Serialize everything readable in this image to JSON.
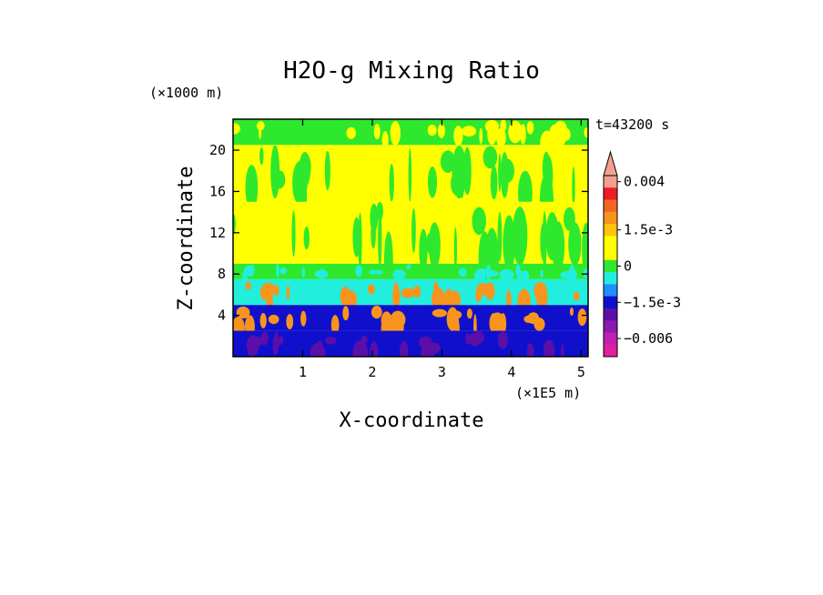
{
  "chart_data": {
    "type": "heatmap",
    "title": "H2O-g Mixing Ratio",
    "xlabel": "X-coordinate",
    "ylabel": "Z-coordinate",
    "x_unit": "(×1E5 m)",
    "y_unit": "(×1000 m)",
    "time_label": "t=43200 s",
    "xlim": [
      0,
      5.1
    ],
    "ylim": [
      0,
      23
    ],
    "x_ticks": [
      1,
      2,
      3,
      4,
      5
    ],
    "x_tick_labels": [
      "1",
      "2",
      "3",
      "4",
      "5"
    ],
    "y_ticks": [
      4,
      8,
      12,
      16,
      20
    ],
    "y_tick_labels": [
      "4",
      "8",
      "12",
      "16",
      "20"
    ],
    "colorbar": {
      "labels": [
        {
          "text": "0.004",
          "value": 0.004
        },
        {
          "text": "1.5e-3",
          "value": 0.0015
        },
        {
          "text": "0",
          "value": 0
        },
        {
          "text": "−1.5e-3",
          "value": -0.0015
        },
        {
          "text": "−0.006",
          "value": -0.006
        }
      ],
      "levels": [
        {
          "value": 0.004,
          "color": "#f4a090"
        },
        {
          "value": 0.003,
          "color": "#ee1c24"
        },
        {
          "value": 0.0025,
          "color": "#f26522"
        },
        {
          "value": 0.002,
          "color": "#f7941d"
        },
        {
          "value": 0.0015,
          "color": "#ffc20e"
        },
        {
          "value": 0.001,
          "color": "#ffff00"
        },
        {
          "value": 0.0005,
          "color": "#ffff00"
        },
        {
          "value": 0,
          "color": "#2ee82e"
        },
        {
          "value": -0.0005,
          "color": "#22eedd"
        },
        {
          "value": -0.001,
          "color": "#1e90ff"
        },
        {
          "value": -0.0015,
          "color": "#1010cc"
        },
        {
          "value": -0.003,
          "color": "#5b0fa8"
        },
        {
          "value": -0.0045,
          "color": "#8a1ab0"
        },
        {
          "value": -0.006,
          "color": "#c020b0"
        },
        {
          "value": -0.008,
          "color": "#e020a0"
        }
      ]
    },
    "field_bands": [
      {
        "z_from": 20.5,
        "z_to": 23,
        "dominant": "#2ee82e",
        "secondary": "#ffff00"
      },
      {
        "z_from": 15,
        "z_to": 20.5,
        "dominant": "#ffff00",
        "secondary": "#2ee82e"
      },
      {
        "z_from": 9,
        "z_to": 15,
        "dominant": "#ffff00",
        "secondary": "#2ee82e"
      },
      {
        "z_from": 7.5,
        "z_to": 9,
        "dominant": "#2ee82e",
        "secondary": "#22eedd"
      },
      {
        "z_from": 5,
        "z_to": 7.5,
        "dominant": "#22eedd",
        "secondary": "#f7941d"
      },
      {
        "z_from": 2.5,
        "z_to": 5,
        "dominant": "#1010cc",
        "secondary": "#f7941d"
      },
      {
        "z_from": 0,
        "z_to": 2.5,
        "dominant": "#1010cc",
        "secondary": "#5b0fa8"
      }
    ]
  }
}
